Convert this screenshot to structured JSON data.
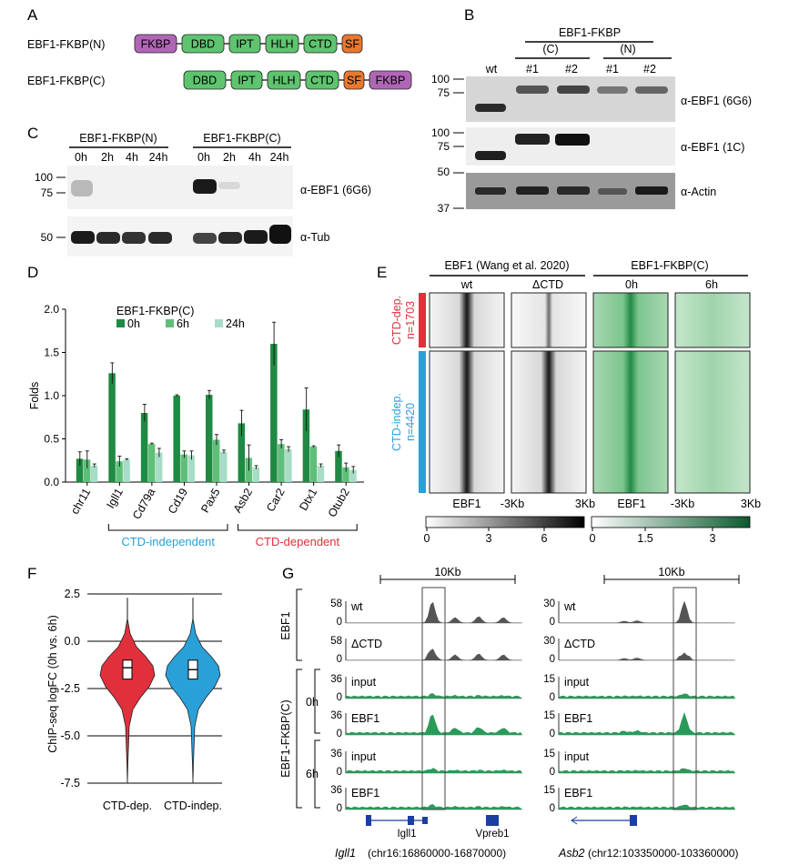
{
  "colors": {
    "fkbp": "#b066b6",
    "domain": "#5fc46f",
    "sf": "#e8782f",
    "bar0h": "#1f8a43",
    "bar6h": "#5fbf78",
    "bar24h": "#a7dcc6",
    "ind": "#2aa0d8",
    "dep": "#e0303c",
    "green_heat": "#1b7a43",
    "track_grey": "#555555",
    "track_green": "#2a9a5a"
  },
  "panels": {
    "A": "A",
    "B": "B",
    "C": "C",
    "D": "D",
    "E": "E",
    "F": "F",
    "G": "G"
  },
  "panelA": {
    "constructs": [
      {
        "label": "EBF1-FKBP(N)",
        "domains": [
          "FKBP",
          "DBD",
          "IPT",
          "HLH",
          "CTD",
          "SF"
        ]
      },
      {
        "label": "EBF1-FKBP(C)",
        "domains": [
          "DBD",
          "IPT",
          "HLH",
          "CTD",
          "SF",
          "FKBP"
        ]
      }
    ]
  },
  "panelB": {
    "title": "EBF1-FKBP",
    "group_c": "(C)",
    "group_n": "(N)",
    "lanes": [
      "wt",
      "#1",
      "#2",
      "#1",
      "#2"
    ],
    "blots": [
      {
        "label": "α-EBF1 (6G6)",
        "markers": [
          "100",
          "75"
        ]
      },
      {
        "label": "α-EBF1 (1C)",
        "markers": [
          "100",
          "75"
        ]
      },
      {
        "label": "α-Actin",
        "markers": [
          "50",
          "37"
        ]
      }
    ]
  },
  "panelC": {
    "group_n": "EBF1-FKBP(N)",
    "group_c": "EBF1-FKBP(C)",
    "times": [
      "0h",
      "2h",
      "4h",
      "24h",
      "0h",
      "2h",
      "4h",
      "24h"
    ],
    "blots": [
      {
        "label": "α-EBF1 (6G6)",
        "markers": [
          "100",
          "75"
        ]
      },
      {
        "label": "α-Tub",
        "markers": [
          "50"
        ]
      }
    ]
  },
  "chart_data": [
    {
      "type": "bar",
      "title": "",
      "legend_title": "EBF1-FKBP(C)",
      "ylabel": "Folds",
      "ylim": [
        0,
        2.0
      ],
      "yticks": [
        "0.0",
        "0.5",
        "1.0",
        "1.5",
        "2.0"
      ],
      "categories": [
        "chr11",
        "Igll1",
        "Cd79a",
        "Cd19",
        "Pax5",
        "Asb2",
        "Car2",
        "Dtx1",
        "Otub2"
      ],
      "series": [
        {
          "name": "0h",
          "values": [
            0.27,
            1.26,
            0.8,
            1.0,
            1.01,
            0.68,
            1.6,
            0.84,
            0.36
          ],
          "errors": [
            0.08,
            0.12,
            0.1,
            0.01,
            0.05,
            0.15,
            0.25,
            0.25,
            0.07
          ]
        },
        {
          "name": "6h",
          "values": [
            0.26,
            0.24,
            0.44,
            0.32,
            0.49,
            0.28,
            0.44,
            0.41,
            0.17
          ],
          "errors": [
            0.1,
            0.06,
            0.01,
            0.04,
            0.06,
            0.15,
            0.05,
            0.01,
            0.05
          ]
        },
        {
          "name": "24h",
          "values": [
            0.19,
            0.26,
            0.34,
            0.31,
            0.35,
            0.17,
            0.38,
            0.19,
            0.14
          ],
          "errors": [
            0.02,
            0.01,
            0.05,
            0.05,
            0.02,
            0.02,
            0.03,
            0.02,
            0.04
          ]
        }
      ],
      "group_labels": [
        {
          "label": "CTD-independent",
          "from": 1,
          "to": 4
        },
        {
          "label": "CTD-dependent",
          "from": 5,
          "to": 8
        }
      ]
    },
    {
      "type": "violin",
      "ylabel": "ChIP-seq logFC (0h vs. 6h)",
      "ylim": [
        -7.5,
        2.5
      ],
      "yticks": [
        "2.5",
        "0.0",
        "-2.5",
        "-5.0",
        "-7.5"
      ],
      "categories": [
        "CTD-dep.",
        "CTD-indep."
      ],
      "medians": [
        -1.4,
        -1.5
      ],
      "q1": [
        -2.0,
        -2.0
      ],
      "q3": [
        -1.0,
        -1.0
      ]
    }
  ],
  "panelE": {
    "group1": "EBF1 (Wang et al. 2020)",
    "group2": "EBF1-FKBP(C)",
    "cols": [
      "wt",
      "ΔCTD",
      "0h",
      "6h"
    ],
    "row1": "CTD-dep.",
    "row1_n": "n=1703",
    "row2": "CTD-indep.",
    "row2_n": "n=4420",
    "xlab": [
      "EBF1",
      "-3Kb",
      "3Kb",
      "EBF1",
      "-3Kb",
      "3Kb"
    ],
    "scale1": [
      "0",
      "3",
      "6"
    ],
    "scale2": [
      "0",
      "1.5",
      "3"
    ]
  },
  "panelG": {
    "scale": "10Kb",
    "row_group1": "EBF1",
    "row_group2": "EBF1-FKBP(C)",
    "t0": "0h",
    "t6": "6h",
    "tracks": [
      "wt",
      "ΔCTD",
      "input",
      "EBF1",
      "input",
      "EBF1"
    ],
    "left_max": [
      "58",
      "58",
      "36",
      "36",
      "36",
      "36"
    ],
    "right_max": [
      "30",
      "30",
      "15",
      "15",
      "15",
      "15"
    ],
    "zero": "0",
    "left_genes": [
      "Igll1",
      "Vpreb1"
    ],
    "left_locus_gene": "Igll1",
    "left_locus_coord": "(chr16:16860000-16870000)",
    "right_locus_gene": "Asb2",
    "right_locus_coord": "(chr12:103350000-103360000)"
  }
}
